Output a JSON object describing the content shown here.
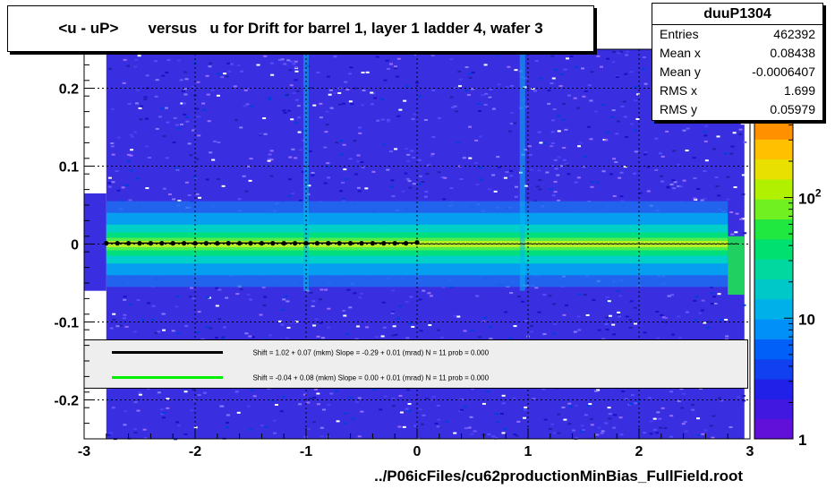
{
  "chart_data": {
    "type": "heatmap",
    "title": "<u - uP>       versus   u for Drift for barrel 1, layer 1 ladder 4, wafer 3",
    "xlabel": "",
    "ylabel": "",
    "xlim": [
      -3,
      3
    ],
    "ylim": [
      -0.25,
      0.25
    ],
    "x_ticks": [
      "-3",
      "-2",
      "-1",
      "0",
      "1",
      "2",
      "3"
    ],
    "y_ticks": [
      "-0.2",
      "-0.1",
      "0",
      "0.1",
      "0.2"
    ],
    "colorbar": {
      "scale": "log",
      "tick_labels": [
        "1",
        "10",
        "10^2"
      ]
    },
    "stats": {
      "name": "duuP1304",
      "rows": [
        {
          "label": "Entries",
          "value": "462392"
        },
        {
          "label": "Mean x",
          "value": "0.08438"
        },
        {
          "label": "Mean y",
          "value": "-0.0006407"
        },
        {
          "label": "RMS x",
          "value": "1.699"
        },
        {
          "label": "RMS y",
          "value": "0.05979"
        }
      ]
    },
    "legend": [
      {
        "color": "#000000",
        "text": "Shift =     1.02 + 0.07 (mkm) Slope =    -0.29 + 0.01 (mrad)  N = 11 prob = 0.000"
      },
      {
        "color": "#00ee00",
        "text": "Shift =    -0.04 + 0.08 (mkm) Slope =     0.00 + 0.01 (mrad)  N = 11 prob = 0.000"
      }
    ],
    "profile_points": {
      "x": [
        -2.8,
        -2.7,
        -2.6,
        -2.5,
        -2.4,
        -2.3,
        -2.2,
        -2.1,
        -2.0,
        -1.9,
        -1.8,
        -1.7,
        -1.6,
        -1.5,
        -1.4,
        -1.3,
        -1.2,
        -1.1,
        -1.0,
        -0.9,
        -0.8,
        -0.7,
        -0.6,
        -0.5,
        -0.4,
        -0.3,
        -0.2,
        -0.1,
        0.0
      ],
      "y": [
        0.001,
        0.001,
        0.001,
        0.001,
        0.001,
        0.001,
        0.001,
        0.001,
        0.001,
        0.001,
        0.001,
        0.001,
        0.001,
        0.001,
        0.001,
        0.001,
        0.001,
        0.001,
        0.001,
        0.001,
        0.001,
        0.001,
        0.001,
        0.001,
        0.001,
        0.001,
        0.001,
        0.001,
        0.002
      ]
    },
    "footer": "../P06icFiles/cu62productionMinBias_FullField.root"
  },
  "colors": {
    "background": "#ffffff",
    "density_low": "#2a1fe8",
    "density_high": "#ffe000",
    "band": "#00e060"
  }
}
